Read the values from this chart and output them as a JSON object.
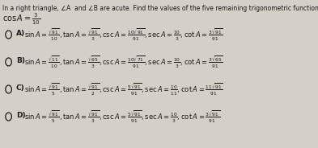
{
  "title": "In a right triangle, ∠A  and ∠B are acute. Find the values of the five remaining trigonometric functions.",
  "given": "cos A = ",
  "given_num": "3",
  "given_den": "10",
  "background_color": "#d4d0c8",
  "text_color": "#1a1a1a",
  "options": [
    {
      "label": "A)",
      "parts": [
        {
          "expr": "\\sin A = \\frac{\\sqrt{91}}{10}",
          "sep": ",  "
        },
        {
          "expr": "\\tan A = \\frac{\\sqrt{91}}{3}",
          "sep": ",  "
        },
        {
          "expr": "\\csc A = \\frac{10\\sqrt{91}}{91}",
          "sep": ",  "
        },
        {
          "expr": "\\sec A = \\frac{10}{3}",
          "sep": ",  "
        },
        {
          "expr": "\\cot A = \\frac{3\\sqrt{91}}{91}",
          "sep": ""
        }
      ]
    },
    {
      "label": "B)",
      "parts": [
        {
          "expr": "\\sin A = \\frac{\\sqrt{11}}{10}",
          "sep": ",  "
        },
        {
          "expr": "\\tan A = \\frac{\\sqrt{65}}{3}",
          "sep": ",  "
        },
        {
          "expr": "\\csc A = \\frac{10\\sqrt{71}}{91}",
          "sep": ",  "
        },
        {
          "expr": "\\sec A = \\frac{10}{3}",
          "sep": ",  "
        },
        {
          "expr": "\\cot A = \\frac{3\\sqrt{65}}{91}",
          "sep": ""
        }
      ]
    },
    {
      "label": "C)",
      "parts": [
        {
          "expr": "\\sin A = \\frac{\\sqrt{91}}{5}",
          "sep": ",  "
        },
        {
          "expr": "\\tan A = \\frac{\\sqrt{91}}{2}",
          "sep": ",  "
        },
        {
          "expr": "\\csc A = \\frac{5\\sqrt{91}}{91}",
          "sep": ",  "
        },
        {
          "expr": "\\sec A = \\frac{10}{11}",
          "sep": ",  "
        },
        {
          "expr": "\\cot A = \\frac{11\\sqrt{91}}{91}",
          "sep": ""
        }
      ]
    },
    {
      "label": "D)",
      "parts": [
        {
          "expr": "\\sin A = \\frac{\\sqrt{91}}{5}",
          "sep": ",  "
        },
        {
          "expr": "\\tan A = \\frac{\\sqrt{91}}{3}",
          "sep": ",  "
        },
        {
          "expr": "\\csc A = \\frac{5\\sqrt{91}}{91}",
          "sep": ",  "
        },
        {
          "expr": "\\sec A = \\frac{10}{3}",
          "sep": ",  "
        },
        {
          "expr": "\\cot A = \\frac{3\\sqrt{91}}{91}",
          "sep": ""
        }
      ]
    }
  ],
  "figsize": [
    3.93,
    1.84
  ],
  "dpi": 100
}
